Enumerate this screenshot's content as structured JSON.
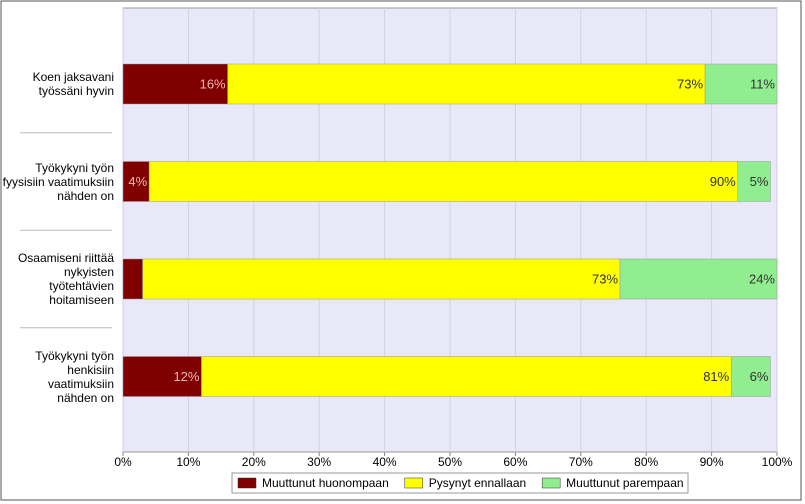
{
  "chart_data": {
    "type": "stacked-barh",
    "categories": [
      "Koen jaksavani\ntyössäni hyvin",
      "Työkykyni työn\nfyysisiin vaatimuksiin\nnähden on",
      "Osaamiseni riittää\nnykyisten työtehtävien\nhoitamiseen",
      "Työkykyni työn\nhenkisiin vaatimuksiin\nnähden on"
    ],
    "series": [
      {
        "name": "Muuttunut huonompaan",
        "color": "#800000",
        "values": [
          16,
          4,
          3,
          12
        ],
        "value_labels": [
          "16%",
          "4%",
          null,
          "12%"
        ]
      },
      {
        "name": "Pysynyt ennallaan",
        "color": "#ffff00",
        "values": [
          73,
          90,
          73,
          81
        ],
        "value_labels": [
          "73%",
          "90%",
          "73%",
          "81%"
        ]
      },
      {
        "name": "Muuttunut parempaan",
        "color": "#90ee90",
        "values": [
          11,
          5,
          24,
          6
        ],
        "value_labels": [
          "11%",
          "5%",
          "24%",
          "6%"
        ]
      }
    ],
    "xlim": [
      0,
      100
    ],
    "xticks": [
      {
        "value": 0,
        "label": "0%"
      },
      {
        "value": 10,
        "label": "10%"
      },
      {
        "value": 20,
        "label": "20%"
      },
      {
        "value": 30,
        "label": "30%"
      },
      {
        "value": 40,
        "label": "40%"
      },
      {
        "value": 50,
        "label": "50%"
      },
      {
        "value": 60,
        "label": "60%"
      },
      {
        "value": 70,
        "label": "70%"
      },
      {
        "value": 80,
        "label": "80%"
      },
      {
        "value": 90,
        "label": "90%"
      },
      {
        "value": 100,
        "label": "100%"
      }
    ],
    "grid": true,
    "legend": "bottom"
  }
}
